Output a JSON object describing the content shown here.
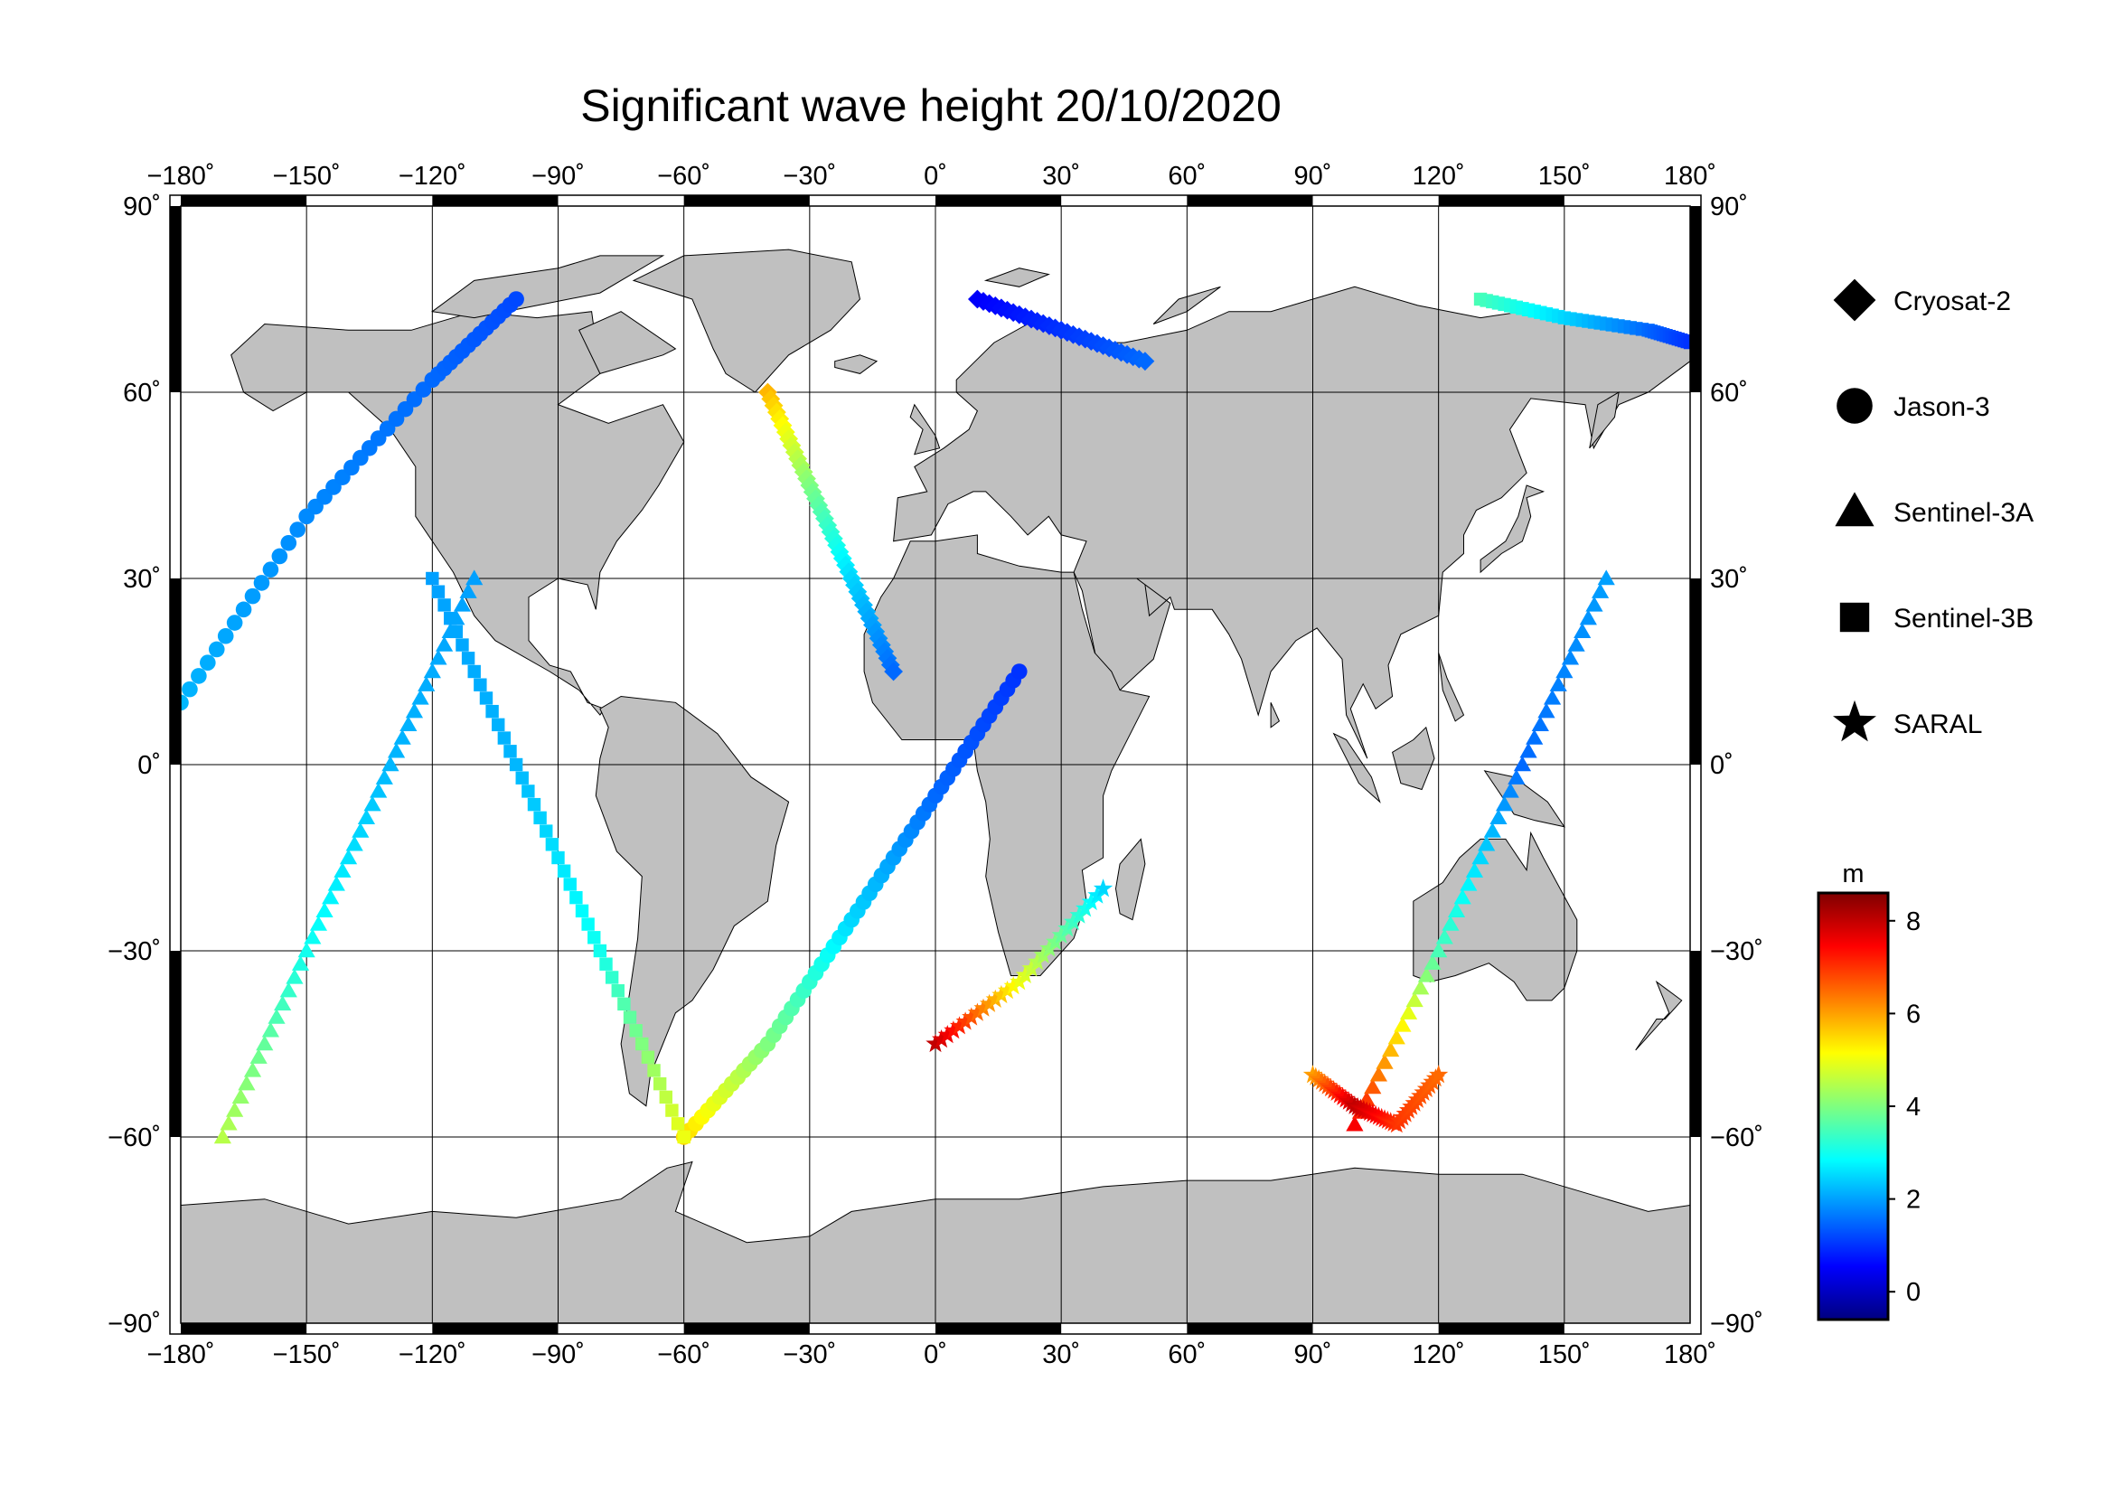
{
  "title": "Significant wave height 20/10/2020",
  "map": {
    "projection": "plate-carree",
    "lon_range": [
      -180,
      180
    ],
    "lat_range": [
      -90,
      90
    ],
    "lon_ticks": [
      "−180˚",
      "−150˚",
      "−120˚",
      "−90˚",
      "−60˚",
      "−30˚",
      "0˚",
      "30˚",
      "60˚",
      "90˚",
      "120˚",
      "150˚",
      "180˚"
    ],
    "lat_ticks_left": [
      "90˚",
      "60˚",
      "30˚",
      "0˚",
      "−30˚",
      "−60˚",
      "−90˚"
    ],
    "lat_ticks_right": [
      "90˚",
      "60˚",
      "30˚",
      "0˚",
      "−30˚",
      "−60˚",
      "−90˚"
    ],
    "gridlines": true,
    "land_color": "#c0c0c0",
    "ocean_color": "#ffffff"
  },
  "legend": {
    "placement": "right",
    "items": [
      {
        "label": "Cryosat-2",
        "symbol": "diamond"
      },
      {
        "label": "Jason-3",
        "symbol": "circle"
      },
      {
        "label": "Sentinel-3A",
        "symbol": "triangle"
      },
      {
        "label": "Sentinel-3B",
        "symbol": "square"
      },
      {
        "label": "SARAL",
        "symbol": "star"
      }
    ]
  },
  "colorbar": {
    "unit": "m",
    "range": [
      -0.6,
      8.6
    ],
    "ticks": [
      "0",
      "2",
      "4",
      "6",
      "8"
    ],
    "colormap": [
      "#00007f",
      "#0000ff",
      "#007fff",
      "#00ffff",
      "#7fff7f",
      "#ffff00",
      "#ff7f00",
      "#ff0000",
      "#7f0000"
    ]
  },
  "chart_data": {
    "type": "scatter",
    "title": "Significant wave height 20/10/2020",
    "xlabel": "",
    "ylabel": "",
    "xlim": [
      -180,
      180
    ],
    "ylim": [
      -90,
      90
    ],
    "value_unit": "m",
    "tracks": [
      {
        "name": "Jason-3",
        "symbol": "circle",
        "lon": [
          -180,
          -150,
          -120,
          -100
        ],
        "lat": [
          10,
          40,
          62,
          75
        ],
        "hs": [
          2.2,
          1.8,
          1.5,
          1.2
        ]
      },
      {
        "name": "Jason-3",
        "symbol": "circle",
        "lon": [
          -60,
          -40,
          -20,
          0,
          20
        ],
        "lat": [
          -60,
          -45,
          -25,
          -5,
          15
        ],
        "hs": [
          5.5,
          4.0,
          2.5,
          1.5,
          1.0
        ]
      },
      {
        "name": "Sentinel-3A",
        "symbol": "triangle",
        "lon": [
          -170,
          -150,
          -130,
          -110
        ],
        "lat": [
          -60,
          -30,
          0,
          30
        ],
        "hs": [
          4.5,
          3.0,
          2.2,
          2.0
        ]
      },
      {
        "name": "Sentinel-3A",
        "symbol": "triangle",
        "lon": [
          100,
          120,
          140,
          160
        ],
        "lat": [
          -58,
          -30,
          0,
          30
        ],
        "hs": [
          7.5,
          3.5,
          1.5,
          2.0
        ]
      },
      {
        "name": "Sentinel-3B",
        "symbol": "square",
        "lon": [
          -120,
          -100,
          -80,
          -60
        ],
        "lat": [
          30,
          0,
          -30,
          -60
        ],
        "hs": [
          2.0,
          2.2,
          3.0,
          5.0
        ]
      },
      {
        "name": "Sentinel-3B",
        "symbol": "square",
        "lon": [
          130,
          150,
          170,
          180
        ],
        "lat": [
          75,
          72,
          70,
          68
        ],
        "hs": [
          3.5,
          2.5,
          1.5,
          1.0
        ]
      },
      {
        "name": "Cryosat-2",
        "symbol": "diamond",
        "lon": [
          10,
          30,
          50
        ],
        "lat": [
          75,
          70,
          65
        ],
        "hs": [
          0.5,
          1.0,
          1.5
        ]
      },
      {
        "name": "Cryosat-2",
        "symbol": "diamond",
        "lon": [
          -40,
          -30,
          -20,
          -10
        ],
        "lat": [
          60,
          45,
          30,
          15
        ],
        "hs": [
          5.8,
          4.0,
          2.5,
          1.5
        ]
      },
      {
        "name": "SARAL",
        "symbol": "star",
        "lon": [
          0,
          20,
          40
        ],
        "lat": [
          -45,
          -35,
          -20
        ],
        "hs": [
          8.0,
          5.0,
          2.5
        ]
      },
      {
        "name": "SARAL",
        "symbol": "star",
        "lon": [
          90,
          100,
          110,
          120
        ],
        "lat": [
          -50,
          -55,
          -58,
          -50
        ],
        "hs": [
          6.0,
          8.0,
          7.0,
          6.5
        ]
      }
    ]
  }
}
